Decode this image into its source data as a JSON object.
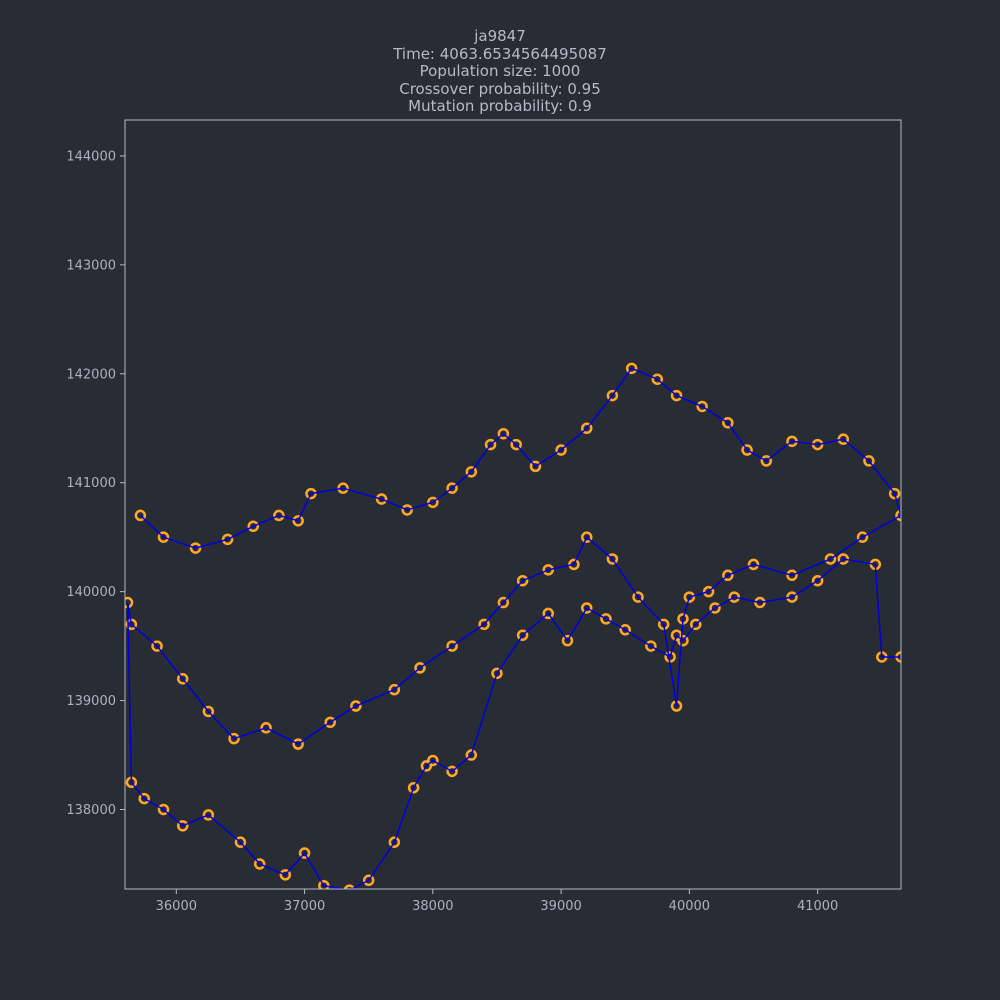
{
  "title": {
    "lines": [
      "ja9847",
      "Time: 4063.6534564495087",
      "Population size: 1000",
      "Crossover probability: 0.95",
      "Mutation probability: 0.9"
    ]
  },
  "chart_data": {
    "type": "line",
    "xlabel": "",
    "ylabel": "",
    "xlim": [
      35600,
      41650
    ],
    "ylim": [
      137270,
      144330
    ],
    "grid": false,
    "x_ticks": [
      "36000",
      "37000",
      "38000",
      "39000",
      "40000",
      "41000"
    ],
    "y_ticks": [
      "138000",
      "139000",
      "140000",
      "141000",
      "142000",
      "143000",
      "144000"
    ],
    "colors": {
      "route": "#0000dd",
      "cities": "#ffa726",
      "background": "#282c34",
      "axes": "#b3bcc7"
    },
    "series": [
      {
        "marker": "o",
        "x": [
          35720,
          35900,
          36150,
          36400,
          36600,
          36800,
          36950,
          37050,
          37300,
          37600,
          37800,
          38000,
          38150,
          38300,
          38450,
          38550,
          38650,
          38800,
          39000,
          39200,
          39400,
          39550,
          39750,
          39900,
          40100,
          40300,
          40450,
          40600,
          40800,
          41000,
          41200,
          41400,
          41600,
          41650,
          41350,
          41100,
          40800,
          40500,
          40300,
          40150,
          40000,
          39950,
          39900,
          39800,
          39600,
          39400,
          39200,
          39100,
          38900,
          38700,
          38550,
          38400,
          38150,
          37900,
          37700,
          37400,
          37200,
          36950,
          36700,
          36450,
          36250,
          36050,
          35850,
          35650,
          35620,
          35650,
          35750,
          35900,
          36050,
          36250,
          36500,
          36650,
          36850,
          37000,
          37150,
          37350,
          37500,
          37700,
          37850,
          37950,
          38000,
          38150,
          38300,
          38500,
          38700,
          38900,
          39050,
          39200,
          39350,
          39500,
          39700,
          39850,
          39900,
          39950,
          40050,
          40200,
          40350,
          40550,
          40800,
          41000,
          41200,
          41450,
          41500,
          41650
        ],
        "y": [
          140700,
          140500,
          140400,
          140480,
          140600,
          140700,
          140650,
          140900,
          140950,
          140850,
          140750,
          140820,
          140950,
          141100,
          141350,
          141450,
          141350,
          141150,
          141300,
          141500,
          141800,
          142050,
          141950,
          141800,
          141700,
          141550,
          141300,
          141200,
          141380,
          141350,
          141400,
          141200,
          140900,
          140700,
          140500,
          140300,
          140150,
          140250,
          140150,
          140000,
          139950,
          139750,
          138950,
          139700,
          139950,
          140300,
          140500,
          140250,
          140200,
          140100,
          139900,
          139700,
          139500,
          139300,
          139100,
          138950,
          138800,
          138600,
          138750,
          138650,
          138900,
          139200,
          139500,
          139700,
          139900,
          138250,
          138100,
          138000,
          137850,
          137950,
          137700,
          137500,
          137400,
          137600,
          137300,
          137260,
          137350,
          137700,
          138200,
          138400,
          138450,
          138350,
          138500,
          139250,
          139600,
          139800,
          139550,
          139850,
          139750,
          139650,
          139500,
          139400,
          139600,
          139550,
          139700,
          139850,
          139950,
          139900,
          139950,
          140100,
          140300,
          140250,
          139400,
          139400
        ]
      }
    ]
  }
}
